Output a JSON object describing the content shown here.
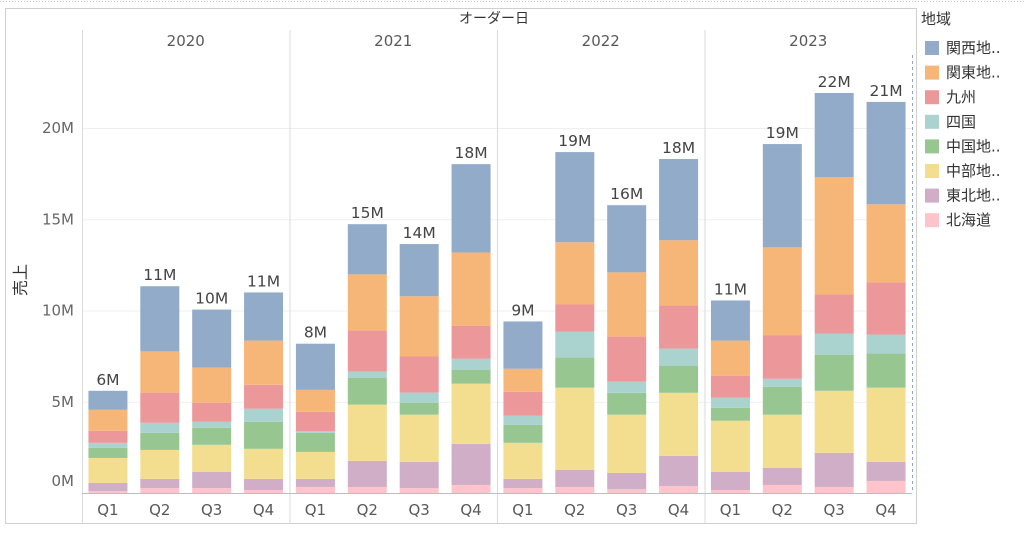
{
  "chart_data": {
    "type": "bar",
    "stacked": true,
    "column_header": "オーダー日",
    "years": [
      "2020",
      "2021",
      "2022",
      "2023"
    ],
    "quarters": [
      "Q1",
      "Q2",
      "Q3",
      "Q4"
    ],
    "ylabel": "売上",
    "ylim": [
      0,
      24
    ],
    "y_ticks": [
      {
        "value": 0,
        "label": "0M"
      },
      {
        "value": 5,
        "label": "5M"
      },
      {
        "value": 10,
        "label": "10M"
      },
      {
        "value": 15,
        "label": "15M"
      },
      {
        "value": 20,
        "label": "20M"
      }
    ],
    "grid": true,
    "legend": {
      "title": "地域",
      "position": "right"
    },
    "series": [
      {
        "name": "関西地..",
        "color": "#91ABC9",
        "values": [
          [
            1.04,
            3.57,
            3.18,
            2.64
          ],
          [
            2.53,
            2.75,
            2.86,
            4.84
          ],
          [
            2.59,
            4.94,
            3.68,
            4.45
          ],
          [
            2.2,
            5.66,
            4.61,
            5.61
          ]
        ]
      },
      {
        "name": "関東地..",
        "color": "#F6B677",
        "values": [
          [
            1.15,
            2.26,
            1.92,
            2.42
          ],
          [
            1.2,
            3.08,
            3.3,
            4.01
          ],
          [
            1.26,
            3.41,
            3.52,
            3.58
          ],
          [
            1.92,
            4.83,
            6.43,
            4.28
          ]
        ]
      },
      {
        "name": "九州",
        "color": "#EC9799",
        "values": [
          [
            0.66,
            1.65,
            1.05,
            1.31
          ],
          [
            1.05,
            2.25,
            1.98,
            1.81
          ],
          [
            1.32,
            1.48,
            2.47,
            2.36
          ],
          [
            1.21,
            2.37,
            2.14,
            2.86
          ]
        ]
      },
      {
        "name": "四国",
        "color": "#AAD3D0",
        "values": [
          [
            0.28,
            0.55,
            0.33,
            0.72
          ],
          [
            0.1,
            0.33,
            0.55,
            0.6
          ],
          [
            0.49,
            1.43,
            0.61,
            0.93
          ],
          [
            0.55,
            0.44,
            1.16,
            1.04
          ]
        ]
      },
      {
        "name": "中国地..",
        "color": "#98C691",
        "values": [
          [
            0.55,
            0.94,
            0.93,
            1.48
          ],
          [
            1.05,
            1.48,
            0.66,
            0.77
          ],
          [
            0.99,
            1.65,
            1.2,
            1.49
          ],
          [
            0.71,
            1.53,
            1.98,
            1.87
          ]
        ]
      },
      {
        "name": "中部地..",
        "color": "#F3DE90",
        "values": [
          [
            1.37,
            1.59,
            1.49,
            1.65
          ],
          [
            1.48,
            3.08,
            2.59,
            3.3
          ],
          [
            1.98,
            4.51,
            3.19,
            3.46
          ],
          [
            2.81,
            2.92,
            3.4,
            4.07
          ]
        ]
      },
      {
        "name": "東北地..",
        "color": "#D0AEC7",
        "values": [
          [
            0.44,
            0.5,
            0.88,
            0.61
          ],
          [
            0.44,
            1.43,
            1.43,
            2.25
          ],
          [
            0.5,
            0.93,
            0.88,
            1.65
          ],
          [
            0.99,
            0.93,
            1.87,
            1.04
          ]
        ]
      },
      {
        "name": "北海道",
        "color": "#FDC5CB",
        "values": [
          [
            0.11,
            0.27,
            0.27,
            0.16
          ],
          [
            0.33,
            0.33,
            0.27,
            0.44
          ],
          [
            0.27,
            0.33,
            0.22,
            0.38
          ],
          [
            0.16,
            0.44,
            0.33,
            0.66
          ]
        ]
      }
    ],
    "total_labels": [
      [
        "6M",
        "11M",
        "10M",
        "11M"
      ],
      [
        "8M",
        "15M",
        "14M",
        "18M"
      ],
      [
        "9M",
        "19M",
        "16M",
        "18M"
      ],
      [
        "11M",
        "19M",
        "22M",
        "21M"
      ]
    ]
  }
}
